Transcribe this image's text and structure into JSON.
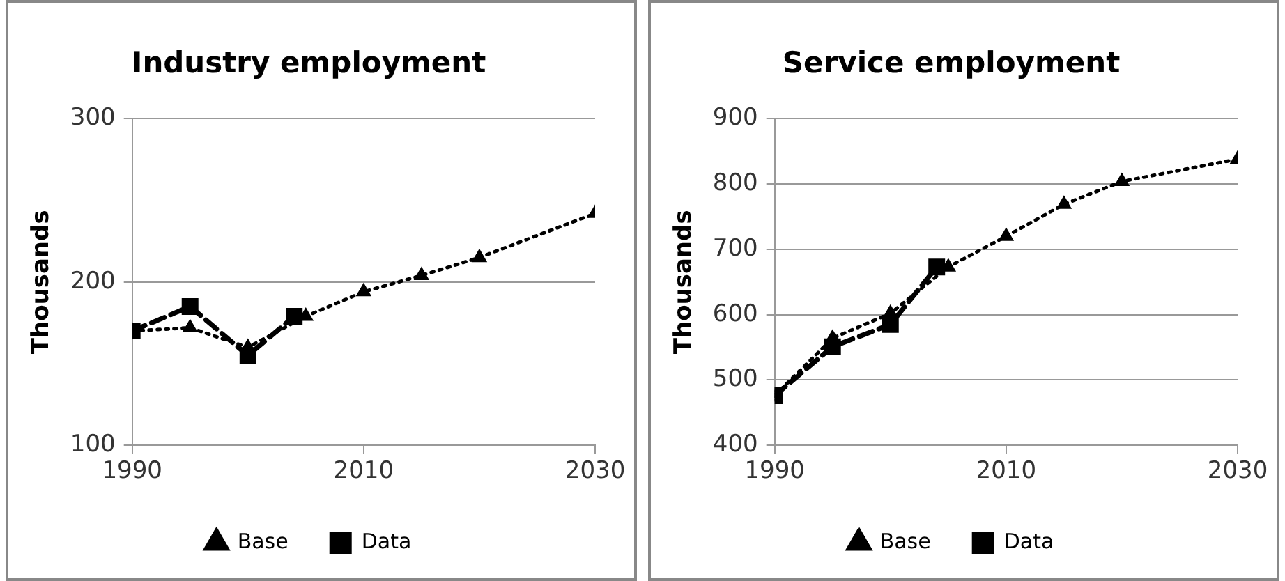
{
  "chart_data": [
    {
      "type": "line",
      "title": "Industry employment",
      "ylabel": "Thousands",
      "xlim": [
        1990,
        2030
      ],
      "xticks": [
        1990,
        2010,
        2030
      ],
      "ylim": [
        100,
        300
      ],
      "yticks": [
        100,
        200,
        300
      ],
      "grid": "y",
      "legend": "bottom",
      "series": [
        {
          "name": "Base",
          "color": "#000000",
          "marker": "triangle",
          "line_style": "dotted",
          "x": [
            1990,
            1995,
            2000,
            2005,
            2010,
            2015,
            2020,
            2030
          ],
          "values": [
            170,
            172,
            160,
            179,
            194,
            204,
            215,
            242
          ]
        },
        {
          "name": "Data",
          "color": "#000000",
          "marker": "square",
          "line_style": "dashed",
          "x": [
            1990,
            1995,
            2000,
            2004
          ],
          "values": [
            170,
            185,
            155,
            179
          ]
        }
      ]
    },
    {
      "type": "line",
      "title": "Service employment",
      "ylabel": "Thousands",
      "xlim": [
        1990,
        2030
      ],
      "xticks": [
        1990,
        2010,
        2030
      ],
      "ylim": [
        400,
        900
      ],
      "yticks": [
        400,
        500,
        600,
        700,
        800,
        900
      ],
      "grid": "y",
      "legend": "bottom",
      "series": [
        {
          "name": "Base",
          "color": "#000000",
          "marker": "triangle",
          "line_style": "dotted",
          "x": [
            1990,
            1995,
            2000,
            2005,
            2010,
            2015,
            2020,
            2030
          ],
          "values": [
            476,
            564,
            602,
            673,
            720,
            769,
            804,
            838
          ]
        },
        {
          "name": "Data",
          "color": "#000000",
          "marker": "square",
          "line_style": "dashed",
          "x": [
            1990,
            1995,
            2000,
            2004
          ],
          "values": [
            476,
            551,
            585,
            673
          ]
        }
      ]
    }
  ]
}
